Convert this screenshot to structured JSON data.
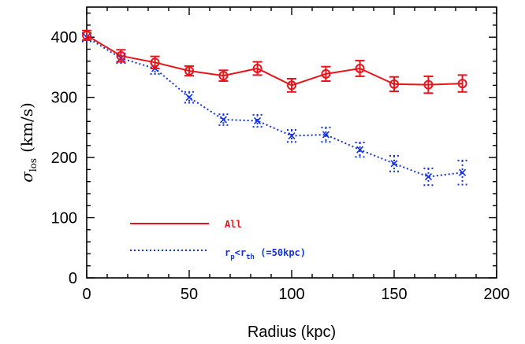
{
  "chart_data": {
    "type": "line",
    "xlabel": "Radius (kpc)",
    "ylabel": {
      "symbol": "σ",
      "subscript": "los",
      "unit": "(km/s)"
    },
    "xlim": [
      0,
      200
    ],
    "ylim": [
      0,
      450
    ],
    "xticks": [
      0,
      50,
      100,
      150,
      200
    ],
    "yticks": [
      0,
      100,
      200,
      300,
      400
    ],
    "grid": false,
    "legend_position": "bottom-left",
    "series": [
      {
        "name": "All",
        "color": "#e8141c",
        "line_style": "solid",
        "marker": "circle",
        "x": [
          0,
          16.7,
          33.3,
          50,
          66.7,
          83.3,
          100,
          116.7,
          133.3,
          150,
          166.7,
          183.3
        ],
        "y": [
          403,
          369,
          358,
          344,
          336,
          348,
          320,
          339,
          348,
          322,
          321,
          323
        ],
        "err": [
          8,
          10,
          10,
          8,
          9,
          11,
          11,
          12,
          13,
          12,
          14,
          14
        ]
      },
      {
        "name": "r_p<r_th (=50kpc)",
        "color": "#1432e0",
        "line_style": "dotted",
        "marker": "x",
        "x": [
          0,
          16.7,
          33.3,
          50,
          66.7,
          83.3,
          100,
          116.7,
          133.3,
          150,
          166.7,
          183.3
        ],
        "y": [
          400,
          365,
          348,
          300,
          263,
          261,
          236,
          238,
          213,
          190,
          168,
          175
        ],
        "err": [
          7,
          8,
          9,
          9,
          9,
          10,
          10,
          12,
          12,
          13,
          14,
          20
        ]
      }
    ],
    "legend": {
      "all_label": "All",
      "sub_r": "r",
      "sub_p": "p",
      "sub_lt": "<",
      "sub_r2": "r",
      "sub_th": "th",
      "sub_rest": " (=50kpc)"
    }
  }
}
